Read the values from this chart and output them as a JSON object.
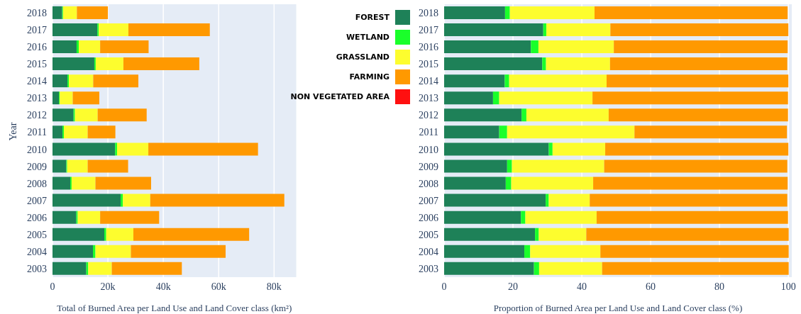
{
  "chart_data": [
    {
      "type": "bar",
      "orientation": "horizontal",
      "stacked": true,
      "ylabel": "Year",
      "xlabel": "Total of Burned Area per Land Use and Land Cover class (km²)",
      "categories": [
        "2018",
        "2017",
        "2016",
        "2015",
        "2014",
        "2013",
        "2012",
        "2011",
        "2010",
        "2009",
        "2008",
        "2007",
        "2006",
        "2005",
        "2004",
        "2003"
      ],
      "xlim": [
        0,
        88000
      ],
      "xticks": [
        0,
        {
          "value": 20000,
          "label": "20k"
        },
        {
          "value": 40000,
          "label": "40k"
        },
        {
          "value": 60000,
          "label": "60k"
        },
        {
          "value": 80000,
          "label": "80k"
        }
      ],
      "grid": "x",
      "legend": "top right",
      "series": [
        {
          "name": "FOREST",
          "color": "#1e8158",
          "values": [
            3500,
            16200,
            8700,
            15100,
            5400,
            2300,
            7600,
            3600,
            22600,
            5000,
            6400,
            24600,
            8600,
            18700,
            14600,
            12200
          ]
        },
        {
          "name": "WETLAND",
          "color": "#1aff2a",
          "values": [
            300,
            500,
            800,
            500,
            500,
            300,
            500,
            500,
            700,
            300,
            500,
            800,
            500,
            700,
            900,
            700
          ]
        },
        {
          "name": "GRASSLAND",
          "color": "#fdfd2e",
          "values": [
            5000,
            10700,
            7700,
            10000,
            8800,
            4700,
            8200,
            8600,
            11300,
            7400,
            8600,
            9900,
            8100,
            9800,
            12800,
            8500
          ]
        },
        {
          "name": "FARMING",
          "color": "#ff9900",
          "values": [
            11200,
            29400,
            17500,
            27400,
            16300,
            9600,
            17700,
            10000,
            39600,
            14600,
            20100,
            48400,
            21300,
            41800,
            34200,
            25300
          ]
        },
        {
          "name": "NON VEGETATED AREA",
          "color": "#ff1010",
          "values": [
            null,
            null,
            null,
            null,
            null,
            null,
            null,
            null,
            null,
            null,
            null,
            null,
            null,
            null,
            null,
            null
          ]
        }
      ]
    },
    {
      "type": "bar",
      "orientation": "horizontal",
      "stacked": true,
      "xlabel": "Proportion of Burned Area per Land Use and Land Cover class (%)",
      "categories": [
        "2018",
        "2017",
        "2016",
        "2015",
        "2014",
        "2013",
        "2012",
        "2011",
        "2010",
        "2009",
        "2008",
        "2007",
        "2006",
        "2005",
        "2004",
        "2003"
      ],
      "xlim": [
        0,
        101
      ],
      "xticks": [
        0,
        20,
        40,
        60,
        80,
        100
      ],
      "grid": "x",
      "series": [
        {
          "color": "#1e8158",
          "values": [
            17.7,
            28.8,
            25.2,
            28.5,
            17.6,
            14.2,
            22.5,
            16.0,
            30.4,
            18.3,
            17.9,
            29.5,
            22.3,
            26.4,
            23.3,
            26.1
          ]
        },
        {
          "color": "#1aff2a",
          "values": [
            1.4,
            0.9,
            2.2,
            1.1,
            1.3,
            1.8,
            1.4,
            2.3,
            1.1,
            1.4,
            1.6,
            0.9,
            1.3,
            1.1,
            1.7,
            1.5
          ]
        },
        {
          "color": "#fdfd2e",
          "values": [
            24.6,
            18.6,
            21.9,
            18.6,
            28.3,
            27.1,
            23.9,
            37.0,
            15.3,
            26.8,
            23.8,
            11.9,
            20.7,
            13.8,
            20.4,
            18.3
          ]
        },
        {
          "color": "#ff9900",
          "values": [
            56.1,
            51.7,
            50.5,
            51.5,
            52.8,
            56.8,
            52.1,
            44.3,
            53.2,
            53.2,
            56.5,
            57.4,
            55.6,
            58.8,
            54.7,
            54.2
          ]
        }
      ]
    }
  ]
}
